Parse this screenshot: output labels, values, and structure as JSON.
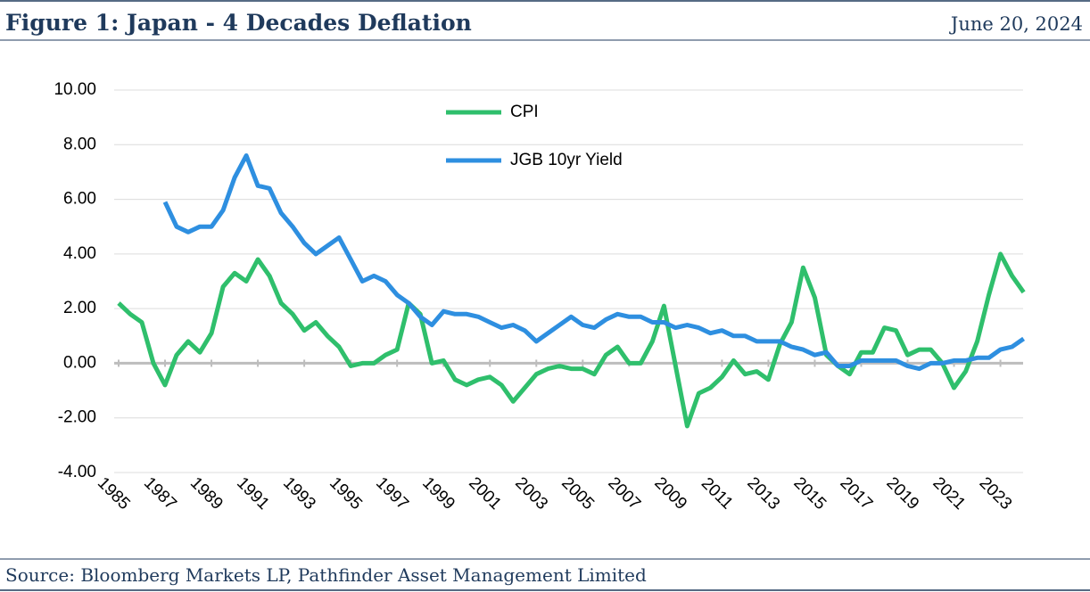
{
  "header": {
    "title": "Figure 1: Japan - 4 Decades Deflation",
    "date": "June 20, 2024"
  },
  "footer": {
    "source": "Source: Bloomberg Markets LP, Pathfinder Asset Management Limited"
  },
  "chart_data": {
    "type": "line",
    "x": [
      1985,
      1985.5,
      1986,
      1986.5,
      1987,
      1987.5,
      1988,
      1988.5,
      1989,
      1989.5,
      1990,
      1990.5,
      1991,
      1991.5,
      1992,
      1992.5,
      1993,
      1993.5,
      1994,
      1994.5,
      1995,
      1995.5,
      1996,
      1996.5,
      1997,
      1997.5,
      1998,
      1998.5,
      1999,
      1999.5,
      2000,
      2000.5,
      2001,
      2001.5,
      2002,
      2002.5,
      2003,
      2003.5,
      2004,
      2004.5,
      2005,
      2005.5,
      2006,
      2006.5,
      2007,
      2007.5,
      2008,
      2008.5,
      2009,
      2009.5,
      2010,
      2010.5,
      2011,
      2011.5,
      2012,
      2012.5,
      2013,
      2013.5,
      2014,
      2014.5,
      2015,
      2015.5,
      2016,
      2016.5,
      2017,
      2017.5,
      2018,
      2018.5,
      2019,
      2019.5,
      2020,
      2020.5,
      2021,
      2021.5,
      2022,
      2022.5,
      2023,
      2023.5,
      2024
    ],
    "series": [
      {
        "name": "CPI",
        "color": "#2fbf6c",
        "values": [
          2.2,
          1.8,
          1.5,
          0.0,
          -0.8,
          0.3,
          0.8,
          0.4,
          1.1,
          2.8,
          3.3,
          3.0,
          3.8,
          3.2,
          2.2,
          1.8,
          1.2,
          1.5,
          1.0,
          0.6,
          -0.1,
          0.0,
          0.0,
          0.3,
          0.5,
          2.2,
          1.8,
          0.0,
          0.1,
          -0.6,
          -0.8,
          -0.6,
          -0.5,
          -0.8,
          -1.4,
          -0.9,
          -0.4,
          -0.2,
          -0.1,
          -0.2,
          -0.2,
          -0.4,
          0.3,
          0.6,
          0.0,
          0.0,
          0.8,
          2.1,
          -0.1,
          -2.3,
          -1.1,
          -0.9,
          -0.5,
          0.1,
          -0.4,
          -0.3,
          -0.6,
          0.7,
          1.5,
          3.5,
          2.4,
          0.3,
          -0.1,
          -0.4,
          0.4,
          0.4,
          1.3,
          1.2,
          0.3,
          0.5,
          0.5,
          0.0,
          -0.9,
          -0.3,
          0.8,
          2.5,
          4.0,
          3.2,
          2.6
        ]
      },
      {
        "name": "JGB 10yr Yield",
        "color": "#2e8fe0",
        "values": [
          null,
          null,
          null,
          null,
          5.9,
          5.0,
          4.8,
          5.0,
          5.0,
          5.6,
          6.8,
          7.6,
          6.5,
          6.4,
          5.5,
          5.0,
          4.4,
          4.0,
          4.3,
          4.6,
          3.8,
          3.0,
          3.2,
          3.0,
          2.5,
          2.2,
          1.7,
          1.4,
          1.9,
          1.8,
          1.8,
          1.7,
          1.5,
          1.3,
          1.4,
          1.2,
          0.8,
          1.1,
          1.4,
          1.7,
          1.4,
          1.3,
          1.6,
          1.8,
          1.7,
          1.7,
          1.5,
          1.5,
          1.3,
          1.4,
          1.3,
          1.1,
          1.2,
          1.0,
          1.0,
          0.8,
          0.8,
          0.8,
          0.6,
          0.5,
          0.3,
          0.4,
          -0.1,
          -0.1,
          0.1,
          0.1,
          0.1,
          0.1,
          -0.1,
          -0.2,
          0.0,
          0.0,
          0.1,
          0.1,
          0.2,
          0.2,
          0.5,
          0.6,
          0.9
        ]
      }
    ],
    "xlim": [
      1985,
      2024.4
    ],
    "xticks": [
      1985,
      1987,
      1989,
      1991,
      1993,
      1995,
      1997,
      1999,
      2001,
      2003,
      2005,
      2007,
      2009,
      2011,
      2013,
      2015,
      2017,
      2019,
      2021,
      2023
    ],
    "ylim": [
      -4,
      10
    ],
    "yticks": [
      {
        "value": -4,
        "label": "-4.00"
      },
      {
        "value": -2,
        "label": "-2.00"
      },
      {
        "value": 0,
        "label": "0.00"
      },
      {
        "value": 2,
        "label": "2.00"
      },
      {
        "value": 4,
        "label": "4.00"
      },
      {
        "value": 6,
        "label": "6.00"
      },
      {
        "value": 8,
        "label": "8.00"
      },
      {
        "value": 10,
        "label": "10.00"
      }
    ],
    "grid": true,
    "legend": "top"
  }
}
